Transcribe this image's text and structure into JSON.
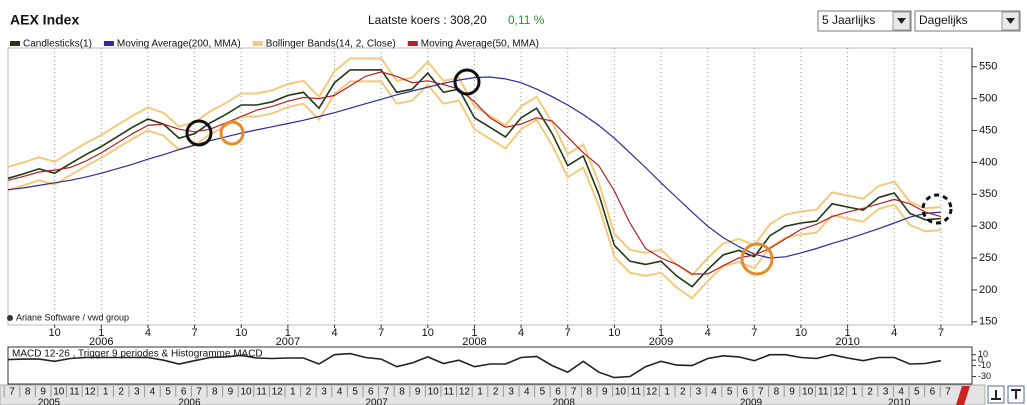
{
  "header": {
    "title": "AEX Index",
    "last_quote": "Laatste koers : 308,20",
    "change": "0,11 %"
  },
  "controls": {
    "period": "5 Jaarlijks",
    "interval": "Dagelijks"
  },
  "credit": "Ariane Software / vwd group",
  "chart_data": [
    {
      "type": "line",
      "x": [
        "2005-07",
        "2005-08",
        "2005-09",
        "2005-10",
        "2005-11",
        "2005-12",
        "2006-01",
        "2006-02",
        "2006-03",
        "2006-04",
        "2006-05",
        "2006-06",
        "2006-07",
        "2006-08",
        "2006-09",
        "2006-10",
        "2006-11",
        "2006-12",
        "2007-01",
        "2007-02",
        "2007-03",
        "2007-04",
        "2007-05",
        "2007-06",
        "2007-07",
        "2007-08",
        "2007-09",
        "2007-10",
        "2007-11",
        "2007-12",
        "2008-01",
        "2008-02",
        "2008-03",
        "2008-04",
        "2008-05",
        "2008-06",
        "2008-07",
        "2008-08",
        "2008-09",
        "2008-10",
        "2008-11",
        "2008-12",
        "2009-01",
        "2009-02",
        "2009-03",
        "2009-04",
        "2009-05",
        "2009-06",
        "2009-07",
        "2009-08",
        "2009-09",
        "2009-10",
        "2009-11",
        "2009-12",
        "2010-01",
        "2010-02",
        "2010-03",
        "2010-04",
        "2010-05",
        "2010-06",
        "2010-07"
      ],
      "series": [
        {
          "name": "Candlesticks(1)",
          "color": "#1f3a12",
          "values": [
            375,
            382,
            390,
            383,
            398,
            412,
            425,
            440,
            455,
            468,
            460,
            438,
            445,
            462,
            475,
            490,
            490,
            495,
            505,
            510,
            485,
            525,
            545,
            545,
            545,
            510,
            515,
            540,
            510,
            515,
            470,
            455,
            440,
            470,
            485,
            445,
            395,
            410,
            350,
            270,
            245,
            240,
            245,
            222,
            205,
            232,
            255,
            262,
            252,
            285,
            300,
            305,
            308,
            335,
            330,
            325,
            345,
            352,
            320,
            310,
            312
          ]
        },
        {
          "name": "Moving Average(200, MMA)",
          "color": "#2b2b9a",
          "values": [
            357,
            360,
            364,
            368,
            372,
            377,
            383,
            390,
            397,
            405,
            412,
            420,
            427,
            434,
            440,
            446,
            451,
            456,
            461,
            466,
            472,
            478,
            485,
            492,
            499,
            506,
            512,
            518,
            524,
            529,
            533,
            534,
            531,
            525,
            515,
            503,
            490,
            475,
            458,
            438,
            415,
            392,
            368,
            345,
            322,
            300,
            282,
            268,
            256,
            250,
            252,
            258,
            265,
            273,
            280,
            288,
            296,
            305,
            314,
            320,
            322
          ]
        },
        {
          "name": "Bollinger Bands(14, 2, Close)",
          "color": "#f5c97a",
          "upper": [
            393,
            400,
            408,
            401,
            416,
            430,
            443,
            458,
            473,
            486,
            478,
            456,
            463,
            480,
            493,
            508,
            508,
            513,
            523,
            528,
            503,
            543,
            563,
            563,
            563,
            528,
            533,
            558,
            528,
            533,
            488,
            473,
            458,
            488,
            503,
            463,
            413,
            428,
            368,
            288,
            263,
            258,
            263,
            240,
            223,
            250,
            273,
            280,
            270,
            303,
            318,
            323,
            326,
            353,
            348,
            343,
            363,
            370,
            338,
            328,
            330
          ],
          "lower": [
            357,
            364,
            372,
            365,
            380,
            394,
            407,
            422,
            437,
            450,
            442,
            420,
            427,
            444,
            457,
            472,
            472,
            477,
            487,
            492,
            467,
            507,
            527,
            527,
            527,
            492,
            497,
            522,
            492,
            497,
            452,
            437,
            422,
            452,
            467,
            427,
            377,
            392,
            332,
            252,
            227,
            222,
            227,
            204,
            187,
            214,
            237,
            244,
            234,
            267,
            282,
            287,
            290,
            317,
            312,
            307,
            327,
            334,
            302,
            292,
            294
          ]
        },
        {
          "name": "Moving Average(50, MMA)",
          "color": "#b22222",
          "values": [
            372,
            378,
            385,
            388,
            392,
            402,
            415,
            430,
            445,
            458,
            460,
            452,
            448,
            452,
            462,
            472,
            482,
            488,
            496,
            502,
            500,
            505,
            520,
            535,
            542,
            535,
            525,
            528,
            522,
            515,
            495,
            470,
            455,
            460,
            470,
            465,
            440,
            415,
            395,
            355,
            305,
            265,
            250,
            240,
            225,
            225,
            238,
            250,
            255,
            265,
            280,
            295,
            303,
            315,
            322,
            328,
            335,
            342,
            335,
            322,
            315
          ]
        }
      ],
      "xlim": [
        "2005-07",
        "2010-09"
      ],
      "xticks": [
        {
          "value": "2005-10",
          "label": "10"
        },
        {
          "value": "2006-01",
          "label": "1"
        },
        {
          "value": "2006-04",
          "label": "4"
        },
        {
          "value": "2006-07",
          "label": "7"
        },
        {
          "value": "2006-10",
          "label": "10"
        },
        {
          "value": "2007-01",
          "label": "1"
        },
        {
          "value": "2007-04",
          "label": "4"
        },
        {
          "value": "2007-07",
          "label": "7"
        },
        {
          "value": "2007-10",
          "label": "10"
        },
        {
          "value": "2008-01",
          "label": "1"
        },
        {
          "value": "2008-04",
          "label": "4"
        },
        {
          "value": "2008-07",
          "label": "7"
        },
        {
          "value": "2008-10",
          "label": "10"
        },
        {
          "value": "2009-01",
          "label": "1"
        },
        {
          "value": "2009-04",
          "label": "4"
        },
        {
          "value": "2009-07",
          "label": "7"
        },
        {
          "value": "2009-10",
          "label": "10"
        },
        {
          "value": "2010-01",
          "label": "1"
        },
        {
          "value": "2010-04",
          "label": "4"
        },
        {
          "value": "2010-07",
          "label": "7"
        }
      ],
      "year_labels": [
        {
          "value": "2006-01",
          "label": "2006"
        },
        {
          "value": "2007-01",
          "label": "2007"
        },
        {
          "value": "2008-01",
          "label": "2008"
        },
        {
          "value": "2009-01",
          "label": "2009"
        },
        {
          "value": "2010-01",
          "label": "2010"
        }
      ],
      "ylim": [
        145,
        570
      ],
      "yticks": [
        150,
        200,
        250,
        300,
        350,
        400,
        450,
        500,
        550
      ],
      "grid": true
    },
    {
      "type": "line",
      "title": "MACD 12-26 , Trigger 9 periodes & Histogramme MACD",
      "series": [
        {
          "color": "#222222",
          "values": [
            1,
            2,
            2,
            -2,
            3,
            5,
            5,
            5,
            5,
            5,
            0,
            -7,
            -1,
            5,
            6,
            9,
            4,
            3,
            4,
            4,
            -7,
            10,
            12,
            5,
            2,
            -12,
            -5,
            6,
            -6,
            0,
            -12,
            -7,
            -7,
            5,
            7,
            -10,
            -22,
            -2,
            -22,
            -32,
            -30,
            -12,
            -2,
            -9,
            -10,
            3,
            8,
            6,
            -1,
            10,
            10,
            5,
            3,
            10,
            4,
            -1,
            5,
            5,
            -7,
            -6,
            -1
          ]
        }
      ],
      "ylim": [
        -40,
        15
      ],
      "yticks": [
        10,
        0,
        -10,
        -30
      ]
    }
  ],
  "navigator": {
    "months": [
      "7",
      "8",
      "9",
      "10",
      "11",
      "12",
      "1",
      "2",
      "3",
      "4",
      "5",
      "6",
      "7",
      "8",
      "9",
      "10",
      "11",
      "12",
      "1",
      "2",
      "3",
      "4",
      "5",
      "6",
      "7",
      "8",
      "9",
      "10",
      "11",
      "12",
      "1",
      "2",
      "3",
      "4",
      "5",
      "6",
      "7",
      "8",
      "9",
      "10",
      "11",
      "12",
      "1",
      "2",
      "3",
      "4",
      "5",
      "6",
      "7",
      "8",
      "9",
      "10",
      "11",
      "12",
      "1",
      "2",
      "3",
      "4",
      "5",
      "6",
      "7"
    ],
    "years": [
      "2005",
      "2006",
      "2007",
      "2008",
      "2009",
      "2010"
    ]
  }
}
